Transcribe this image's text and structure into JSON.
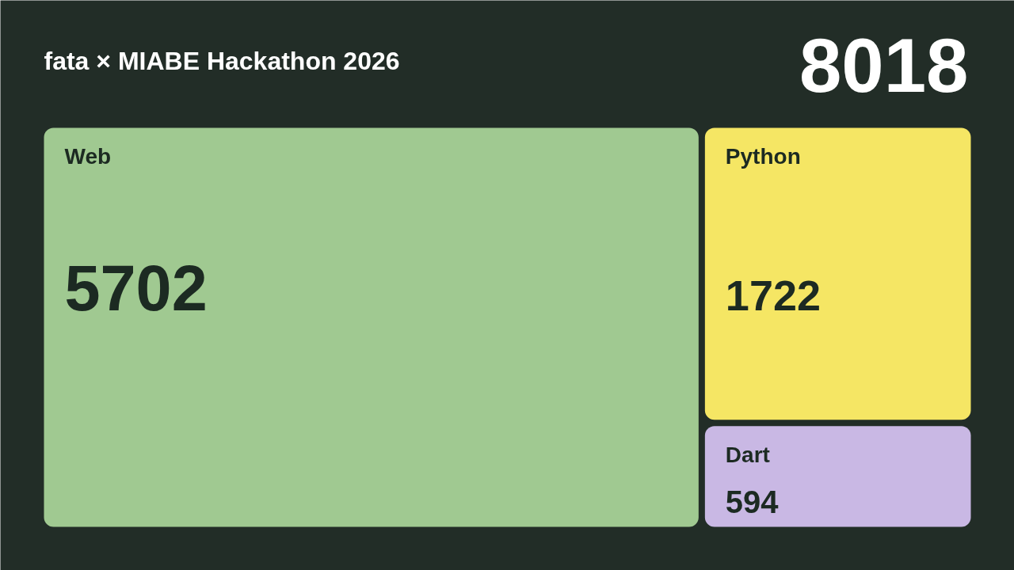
{
  "chart_data": {
    "type": "other",
    "title": "fata × MIABE Hackathon 2026",
    "categories": [
      "Web",
      "Python",
      "Dart"
    ],
    "values": [
      5702,
      1722,
      594
    ],
    "colors": [
      "#a0c991",
      "#f5e664",
      "#c9b8e4"
    ],
    "annotations": [
      "8018"
    ],
    "data_labels": true
  }
}
